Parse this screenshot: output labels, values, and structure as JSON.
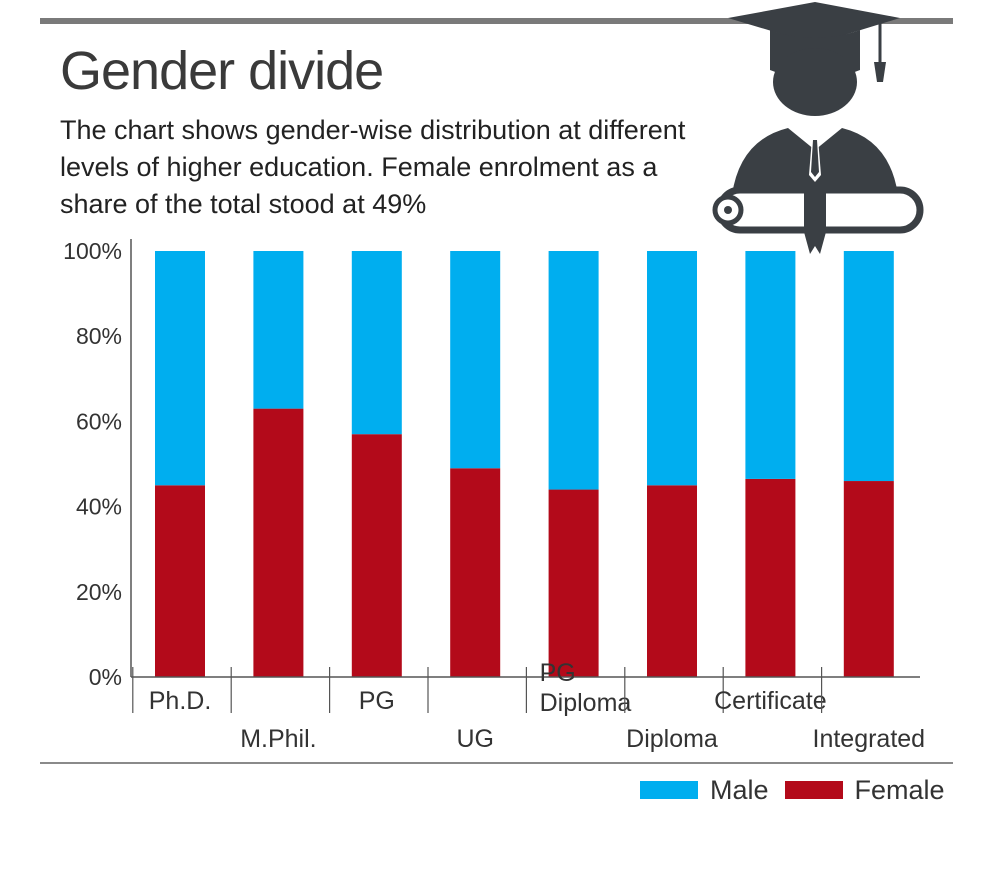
{
  "header": {
    "title": "Gender divide",
    "subtitle": "The chart shows gender-wise distribution at different levels of higher education. Female enrolment as a share of the total stood at 49%"
  },
  "colors": {
    "male": "#00aeef",
    "female": "#b30a1a",
    "axis": "#555555"
  },
  "chart_data": {
    "type": "bar",
    "stacked": true,
    "categories": [
      "Ph.D.",
      "M.Phil.",
      "PG",
      "UG",
      "PG\nDiploma",
      "Diploma",
      "Certificate",
      "Integrated"
    ],
    "series": [
      {
        "name": "Female",
        "values": [
          45,
          63,
          57,
          49,
          44,
          45,
          46.5,
          46
        ]
      },
      {
        "name": "Male",
        "values": [
          55,
          37,
          43,
          51,
          56,
          55,
          53.5,
          54
        ]
      }
    ],
    "yticks": [
      "0%",
      "20%",
      "40%",
      "60%",
      "80%",
      "100%"
    ],
    "ylim": [
      0,
      100
    ],
    "legend": [
      "Male",
      "Female"
    ],
    "legend_position": "bottom-right"
  }
}
